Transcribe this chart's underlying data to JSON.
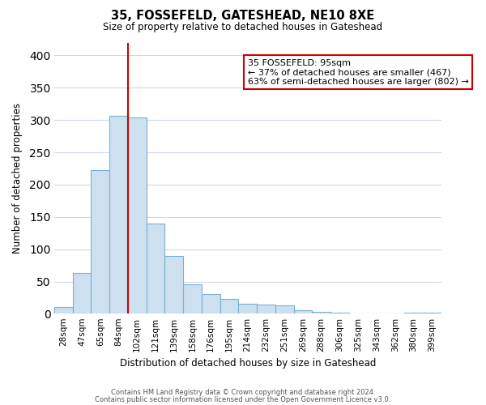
{
  "title": "35, FOSSEFELD, GATESHEAD, NE10 8XE",
  "subtitle": "Size of property relative to detached houses in Gateshead",
  "xlabel": "Distribution of detached houses by size in Gateshead",
  "ylabel": "Number of detached properties",
  "bar_color": "#cce0f0",
  "bar_edge_color": "#7ab0d0",
  "background_color": "#ffffff",
  "grid_color": "#d0d8e8",
  "annotation_box_color": "#ffffff",
  "annotation_box_edge_color": "#cc0000",
  "vline_color": "#cc0000",
  "categories": [
    "28sqm",
    "47sqm",
    "65sqm",
    "84sqm",
    "102sqm",
    "121sqm",
    "139sqm",
    "158sqm",
    "176sqm",
    "195sqm",
    "214sqm",
    "232sqm",
    "251sqm",
    "269sqm",
    "288sqm",
    "306sqm",
    "325sqm",
    "343sqm",
    "362sqm",
    "380sqm",
    "399sqm"
  ],
  "values": [
    10,
    63,
    222,
    306,
    304,
    140,
    90,
    46,
    31,
    23,
    16,
    14,
    13,
    5,
    3,
    2,
    1,
    1,
    1,
    2,
    2
  ],
  "ylim": [
    0,
    420
  ],
  "yticks": [
    0,
    50,
    100,
    150,
    200,
    250,
    300,
    350,
    400
  ],
  "vline_x_idx": 4,
  "annotation_text": "35 FOSSEFELD: 95sqm\n← 37% of detached houses are smaller (467)\n63% of semi-detached houses are larger (802) →",
  "footer_line1": "Contains HM Land Registry data © Crown copyright and database right 2024.",
  "footer_line2": "Contains public sector information licensed under the Open Government Licence v3.0."
}
